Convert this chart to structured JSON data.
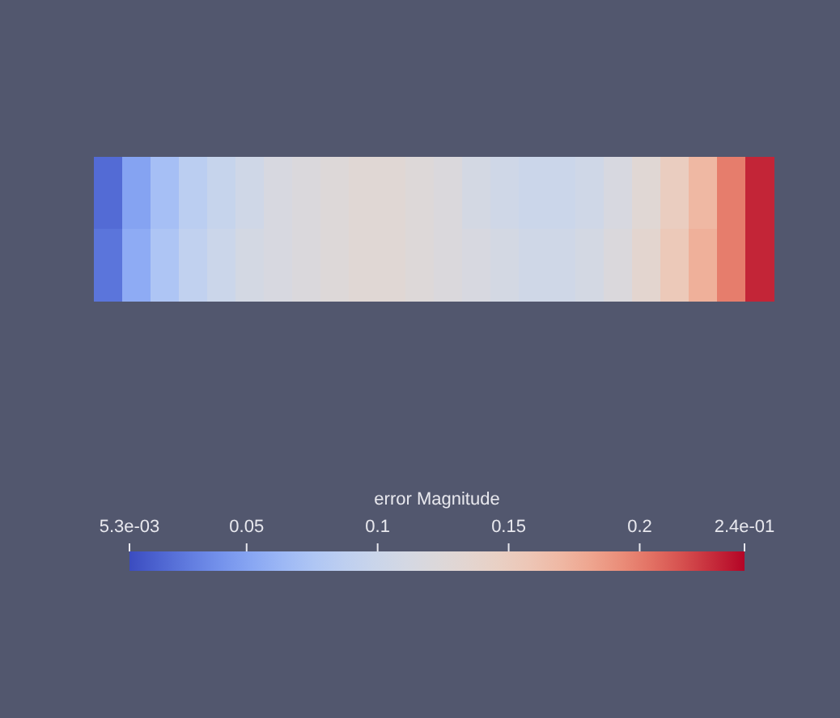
{
  "chart_data": {
    "type": "heatmap",
    "clabel": "error Magnitude",
    "categories": [
      null,
      null,
      null,
      null,
      null,
      null,
      null,
      null,
      null,
      null,
      null,
      null,
      null,
      null,
      null,
      null,
      null,
      null,
      null,
      null,
      null,
      null,
      null,
      null
    ],
    "y_categories": [
      null,
      null
    ],
    "cells": [
      [
        0.02,
        0.05,
        0.07,
        0.085,
        0.095,
        0.105,
        0.115,
        0.12,
        0.125,
        0.13,
        0.13,
        0.125,
        0.12,
        0.11,
        0.105,
        0.1,
        0.1,
        0.105,
        0.115,
        0.13,
        0.15,
        0.17,
        0.2,
        0.23
      ],
      [
        0.025,
        0.055,
        0.075,
        0.09,
        0.1,
        0.11,
        0.115,
        0.12,
        0.125,
        0.13,
        0.13,
        0.125,
        0.12,
        0.115,
        0.11,
        0.105,
        0.105,
        0.11,
        0.12,
        0.135,
        0.155,
        0.175,
        0.2,
        0.23
      ]
    ],
    "clim": [
      0.0053,
      0.24
    ],
    "cticks": [
      {
        "value": 0.0053,
        "label": "5.3e-03"
      },
      0.05,
      0.1,
      0.15,
      0.2,
      {
        "value": 0.24,
        "label": "2.4e-01"
      }
    ]
  }
}
